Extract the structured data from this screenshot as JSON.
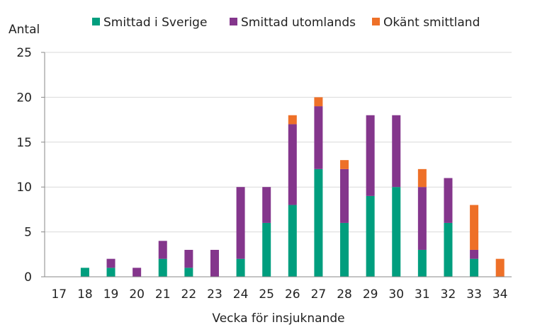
{
  "chart_data": {
    "type": "bar",
    "stacked": true,
    "xlabel": "Vecka för insjuknande",
    "ylabel": "Antal",
    "ylim": [
      0,
      25
    ],
    "yticks": [
      0,
      5,
      10,
      15,
      20,
      25
    ],
    "grid": true,
    "legend_position": "top",
    "categories": [
      "17",
      "18",
      "19",
      "20",
      "21",
      "22",
      "23",
      "24",
      "25",
      "26",
      "27",
      "28",
      "29",
      "30",
      "31",
      "32",
      "33",
      "34"
    ],
    "series": [
      {
        "name": "Smittad i Sverige",
        "color": "#009E7E",
        "values": [
          0,
          1,
          1,
          0,
          2,
          1,
          0,
          2,
          6,
          8,
          12,
          6,
          9,
          10,
          3,
          6,
          2,
          0
        ]
      },
      {
        "name": "Smittad utomlands",
        "color": "#84368C",
        "values": [
          0,
          0,
          1,
          1,
          2,
          2,
          3,
          8,
          4,
          9,
          7,
          6,
          9,
          8,
          7,
          5,
          1,
          0
        ]
      },
      {
        "name": "Okänt smittland",
        "color": "#EE7028",
        "values": [
          0,
          0,
          0,
          0,
          0,
          0,
          0,
          0,
          0,
          1,
          1,
          1,
          0,
          0,
          2,
          0,
          5,
          2
        ]
      }
    ]
  }
}
